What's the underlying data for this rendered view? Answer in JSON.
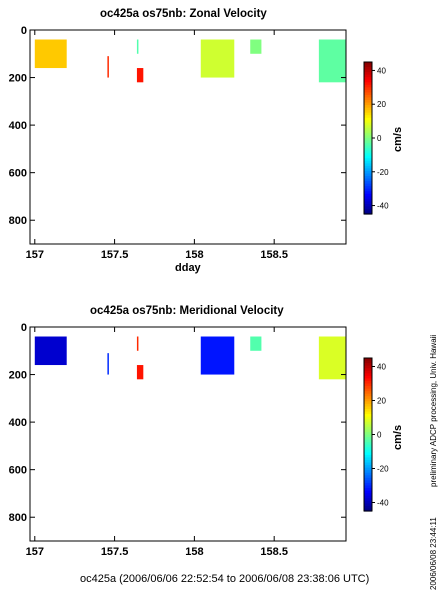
{
  "panels": [
    {
      "title": "oc425a os75nb: Zonal Velocity",
      "xlabel": "dday",
      "units": "cm/s"
    },
    {
      "title": "oc425a os75nb: Meridional Velocity",
      "xlabel": "",
      "units": "cm/s"
    }
  ],
  "footer": "oc425a (2006/06/06 22:52:54 to 2006/06/08 23:38:06 UTC)",
  "sidenote_processing": "preliminary ADCP processing,   Univ. Hawaii",
  "sidenote_timestamp": "2006/06/08 23:44:11",
  "chart_data": [
    {
      "type": "heatmap",
      "title": "oc425a os75nb: Zonal Velocity",
      "xlabel": "dday",
      "ylabel": "",
      "xlim": [
        156.97,
        158.95
      ],
      "ylim": [
        900,
        0
      ],
      "x_ticks": [
        157,
        157.5,
        158,
        158.5
      ],
      "y_ticks": [
        0,
        200,
        400,
        600,
        800
      ],
      "colorbar": {
        "label": "cm/s",
        "range": [
          -45,
          45
        ],
        "ticks": [
          40,
          20,
          0,
          -20,
          -40
        ],
        "colormap": "jet"
      },
      "patches": [
        {
          "x": [
            157.0,
            157.2
          ],
          "depth": [
            40,
            160
          ],
          "value": 16
        },
        {
          "x": [
            157.455,
            157.46
          ],
          "depth": [
            110,
            200
          ],
          "value": 30
        },
        {
          "x": [
            157.64,
            157.645
          ],
          "depth": [
            40,
            100
          ],
          "value": -4
        },
        {
          "x": [
            157.64,
            157.68
          ],
          "depth": [
            160,
            220
          ],
          "value": 32
        },
        {
          "x": [
            158.04,
            158.25
          ],
          "depth": [
            40,
            200
          ],
          "value": 7
        },
        {
          "x": [
            158.35,
            158.42
          ],
          "depth": [
            40,
            100
          ],
          "value": 0
        },
        {
          "x": [
            158.78,
            158.95
          ],
          "depth": [
            40,
            220
          ],
          "value": -3
        }
      ]
    },
    {
      "type": "heatmap",
      "title": "oc425a os75nb: Meridional Velocity",
      "xlabel": "",
      "ylabel": "",
      "xlim": [
        156.97,
        158.95
      ],
      "ylim": [
        900,
        0
      ],
      "x_ticks": [
        157,
        157.5,
        158,
        158.5
      ],
      "y_ticks": [
        0,
        200,
        400,
        600,
        800
      ],
      "colorbar": {
        "label": "cm/s",
        "range": [
          -45,
          45
        ],
        "ticks": [
          40,
          20,
          0,
          -20,
          -40
        ],
        "colormap": "jet"
      },
      "patches": [
        {
          "x": [
            157.0,
            157.2
          ],
          "depth": [
            40,
            160
          ],
          "value": -38
        },
        {
          "x": [
            157.455,
            157.46
          ],
          "depth": [
            110,
            200
          ],
          "value": -30
        },
        {
          "x": [
            157.64,
            157.645
          ],
          "depth": [
            40,
            100
          ],
          "value": 30
        },
        {
          "x": [
            157.64,
            157.68
          ],
          "depth": [
            160,
            220
          ],
          "value": 32
        },
        {
          "x": [
            158.04,
            158.25
          ],
          "depth": [
            40,
            200
          ],
          "value": -32
        },
        {
          "x": [
            158.35,
            158.42
          ],
          "depth": [
            40,
            100
          ],
          "value": -4
        },
        {
          "x": [
            158.78,
            158.95
          ],
          "depth": [
            40,
            220
          ],
          "value": 8
        }
      ]
    }
  ]
}
